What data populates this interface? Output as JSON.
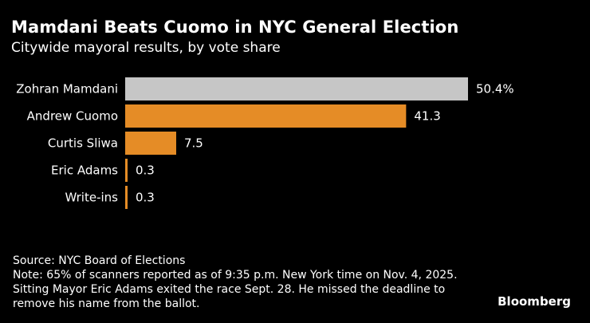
{
  "title": "Mamdani Beats Cuomo in NYC General Election",
  "subtitle": "Citywide mayoral results, by vote share",
  "chart_data": {
    "type": "bar",
    "orientation": "horizontal",
    "categories": [
      "Zohran Mamdani",
      "Andrew Cuomo",
      "Curtis Sliwa",
      "Eric Adams",
      "Write-ins"
    ],
    "values": [
      50.4,
      41.3,
      7.5,
      0.3,
      0.3
    ],
    "value_labels": [
      "50.4%",
      "41.3",
      "7.5",
      "0.3",
      "0.3"
    ],
    "colors": [
      "#c6c6c6",
      "#e58c26",
      "#e58c26",
      "#e58c26",
      "#e58c26"
    ],
    "xlim": [
      0,
      50.4
    ],
    "grid": false,
    "legend": false
  },
  "footer": {
    "source": "Source: NYC Board of Elections",
    "note": "Note: 65% of scanners reported as of 9:35 p.m. New York time on Nov. 4, 2025. Sitting Mayor Eric Adams exited the race Sept. 28. He missed the deadline to remove his name from the ballot."
  },
  "brand": "Bloomberg"
}
